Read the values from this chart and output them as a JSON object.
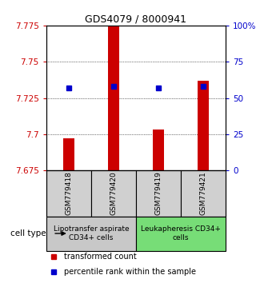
{
  "title": "GDS4079 / 8000941",
  "samples": [
    "GSM779418",
    "GSM779420",
    "GSM779419",
    "GSM779421"
  ],
  "transformed_counts": [
    7.697,
    7.775,
    7.703,
    7.737
  ],
  "percentile_ranks": [
    57,
    58,
    57,
    58
  ],
  "ylim": [
    7.675,
    7.775
  ],
  "yticks": [
    7.675,
    7.7,
    7.725,
    7.75,
    7.775
  ],
  "ytick_labels": [
    "7.675",
    "7.7",
    "7.725",
    "7.75",
    "7.775"
  ],
  "y2lim": [
    0,
    100
  ],
  "y2ticks": [
    0,
    25,
    50,
    75,
    100
  ],
  "y2tick_labels": [
    "0",
    "25",
    "50",
    "75",
    "100%"
  ],
  "bar_color": "#cc0000",
  "dot_color": "#0000cc",
  "bar_bottom": 7.675,
  "bar_width": 0.25,
  "cell_type_groups": [
    {
      "label": "Lipotransfer aspirate\nCD34+ cells",
      "color": "#c8c8c8",
      "n_samples": 2
    },
    {
      "label": "Leukapheresis CD34+\ncells",
      "color": "#77dd77",
      "n_samples": 2
    }
  ],
  "legend_items": [
    {
      "color": "#cc0000",
      "label": "transformed count"
    },
    {
      "color": "#0000cc",
      "label": "percentile rank within the sample"
    }
  ],
  "cell_type_label": "cell type",
  "left_color": "#cc0000",
  "right_color": "#0000cc",
  "sample_bg": "#d0d0d0",
  "title_fontsize": 9,
  "tick_fontsize": 7.5,
  "sample_fontsize": 6.5,
  "celltype_fontsize": 6.5,
  "legend_fontsize": 7
}
